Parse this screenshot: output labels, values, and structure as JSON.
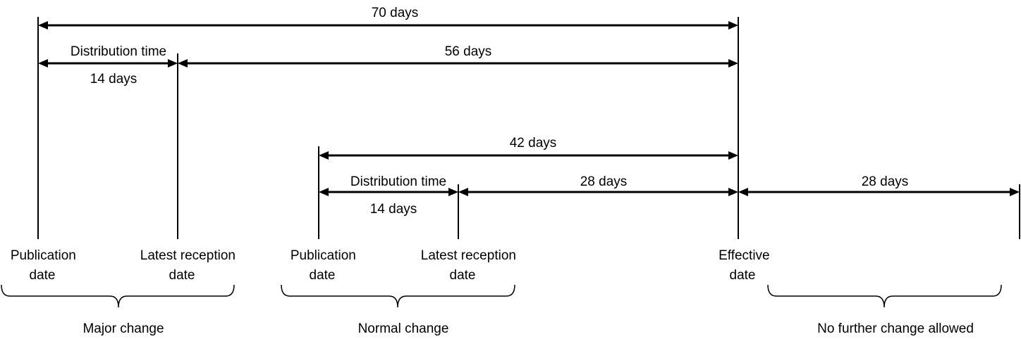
{
  "spans": {
    "major_total": "70 days",
    "major_distribution_title": "Distribution time",
    "major_distribution_days": "14 days",
    "major_remaining": "56 days",
    "normal_total": "42 days",
    "normal_distribution_title": "Distribution time",
    "normal_distribution_days": "14 days",
    "normal_remaining": "28 days",
    "no_change_period": "28 days"
  },
  "milestones": {
    "major_publication": [
      "Publication",
      "date"
    ],
    "major_latest_reception": [
      "Latest reception",
      "date"
    ],
    "normal_publication": [
      "Publication",
      "date"
    ],
    "normal_latest_reception": [
      "Latest reception",
      "date"
    ],
    "effective": [
      "Effective",
      "date"
    ]
  },
  "groups": {
    "major": "Major change",
    "normal": "Normal change",
    "no_further_change": "No further change allowed"
  }
}
